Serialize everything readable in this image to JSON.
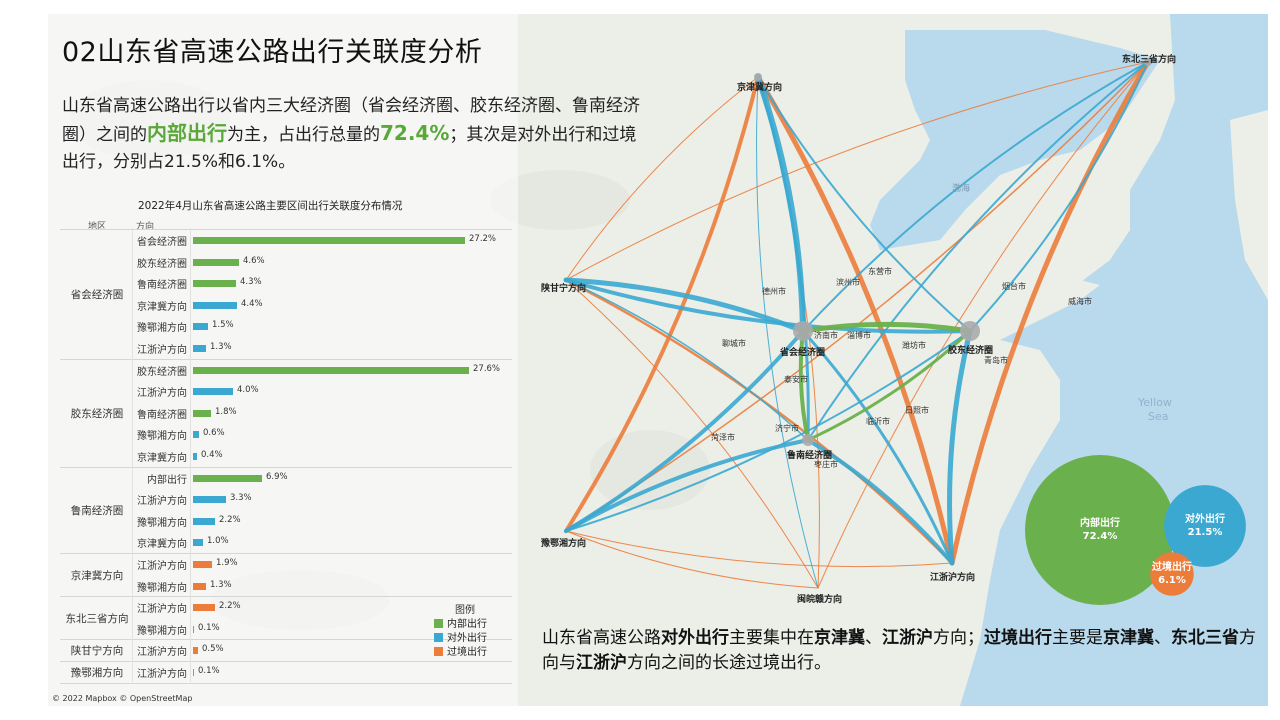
{
  "page": {
    "title": "02山东省高速公路出行关联度分析",
    "intro_parts": [
      "山东省高速公路出行以省内三大经济圈（省会经济圈、胶东经济圈、鲁南经济圈）之间的",
      "内部出行",
      "为主，占出行总量的",
      "72.4%",
      "；其次是对外出行和过境出行，分别占21.5%和6.1%。"
    ],
    "bottom_parts": [
      "山东省高速公路",
      "对外出行",
      "主要集中在",
      "京津冀",
      "、",
      "江浙沪",
      "方向；",
      "过境出行",
      "主要是",
      "京津冀",
      "、",
      "东北三省",
      "方向与",
      "江浙沪",
      "方向之间的长途过境出行。"
    ],
    "copyright": "© 2022 Mapbox © OpenStreetMap"
  },
  "colors": {
    "internal": "#6ab04c",
    "external": "#3aa8d0",
    "transit": "#ec7c3a",
    "map_land": "#eef0ea",
    "map_sea": "#b9d9ec"
  },
  "chart_data": {
    "type": "bar",
    "title": "2022年4月山东省高速公路主要区间出行关联度分布情况",
    "header_region": "地区",
    "header_direction": "方向",
    "unit": "%",
    "legend_title": "图例",
    "series": [
      {
        "name": "内部出行",
        "color": "#6ab04c"
      },
      {
        "name": "对外出行",
        "color": "#3aa8d0"
      },
      {
        "name": "过境出行",
        "color": "#ec7c3a"
      }
    ],
    "groups": [
      {
        "region": "省会经济圈",
        "rows": [
          {
            "direction": "省会经济圈",
            "value": 27.2,
            "label": "27.2%",
            "series": "内部出行"
          },
          {
            "direction": "胶东经济圈",
            "value": 4.6,
            "label": "4.6%",
            "series": "内部出行"
          },
          {
            "direction": "鲁南经济圈",
            "value": 4.3,
            "label": "4.3%",
            "series": "内部出行"
          },
          {
            "direction": "京津冀方向",
            "value": 4.4,
            "label": "4.4%",
            "series": "对外出行"
          },
          {
            "direction": "豫鄂湘方向",
            "value": 1.5,
            "label": "1.5%",
            "series": "对外出行"
          },
          {
            "direction": "江浙沪方向",
            "value": 1.3,
            "label": "1.3%",
            "series": "对外出行"
          }
        ]
      },
      {
        "region": "胶东经济圈",
        "rows": [
          {
            "direction": "胶东经济圈",
            "value": 27.6,
            "label": "27.6%",
            "series": "内部出行"
          },
          {
            "direction": "江浙沪方向",
            "value": 4.0,
            "label": "4.0%",
            "series": "对外出行"
          },
          {
            "direction": "鲁南经济圈",
            "value": 1.8,
            "label": "1.8%",
            "series": "内部出行"
          },
          {
            "direction": "豫鄂湘方向",
            "value": 0.6,
            "label": "0.6%",
            "series": "对外出行"
          },
          {
            "direction": "京津冀方向",
            "value": 0.4,
            "label": "0.4%",
            "series": "对外出行"
          }
        ]
      },
      {
        "region": "鲁南经济圈",
        "rows": [
          {
            "direction": "内部出行",
            "value": 6.9,
            "label": "6.9%",
            "series": "内部出行"
          },
          {
            "direction": "江浙沪方向",
            "value": 3.3,
            "label": "3.3%",
            "series": "对外出行"
          },
          {
            "direction": "豫鄂湘方向",
            "value": 2.2,
            "label": "2.2%",
            "series": "对外出行"
          },
          {
            "direction": "京津冀方向",
            "value": 1.0,
            "label": "1.0%",
            "series": "对外出行"
          }
        ]
      },
      {
        "region": "京津冀方向",
        "rows": [
          {
            "direction": "江浙沪方向",
            "value": 1.9,
            "label": "1.9%",
            "series": "过境出行"
          },
          {
            "direction": "豫鄂湘方向",
            "value": 1.3,
            "label": "1.3%",
            "series": "过境出行"
          }
        ]
      },
      {
        "region": "东北三省方向",
        "rows": [
          {
            "direction": "江浙沪方向",
            "value": 2.2,
            "label": "2.2%",
            "series": "过境出行"
          },
          {
            "direction": "豫鄂湘方向",
            "value": 0.1,
            "label": "0.1%",
            "series": "过境出行"
          }
        ]
      },
      {
        "region": "陕甘宁方向",
        "rows": [
          {
            "direction": "江浙沪方向",
            "value": 0.5,
            "label": "0.5%",
            "series": "过境出行"
          }
        ]
      },
      {
        "region": "豫鄂湘方向",
        "rows": [
          {
            "direction": "江浙沪方向",
            "value": 0.1,
            "label": "0.1%",
            "series": "过境出行"
          }
        ]
      }
    ],
    "bubbles": [
      {
        "name": "内部出行",
        "value": 72.4,
        "label": "72.4%",
        "color": "#6ab04c"
      },
      {
        "name": "对外出行",
        "value": 21.5,
        "label": "21.5%",
        "color": "#3aa8d0"
      },
      {
        "name": "过境出行",
        "value": 6.1,
        "label": "6.1%",
        "color": "#ec7c3a"
      }
    ]
  },
  "map": {
    "nodes": [
      {
        "id": "jjj",
        "label": "京津冀方向"
      },
      {
        "id": "db",
        "label": "东北三省方向"
      },
      {
        "id": "sgn",
        "label": "陕甘宁方向"
      },
      {
        "id": "yex",
        "label": "豫鄂湘方向"
      },
      {
        "id": "jzh",
        "label": "江浙沪方向"
      },
      {
        "id": "wh",
        "label": "闽皖赣方向"
      },
      {
        "id": "sh",
        "label": "省会经济圈"
      },
      {
        "id": "jd",
        "label": "胶东经济圈"
      },
      {
        "id": "ln",
        "label": "鲁南经济圈"
      }
    ],
    "cities": [
      "德州市",
      "滨州市",
      "东营市",
      "烟台市",
      "威海市",
      "济南市",
      "淄博市",
      "潍坊市",
      "青岛市",
      "聊城市",
      "泰安市",
      "日照市",
      "临沂市",
      "济宁市",
      "菏泽市",
      "枣庄市"
    ],
    "sea_labels": [
      "渤海",
      "Yellow",
      "Sea"
    ]
  }
}
